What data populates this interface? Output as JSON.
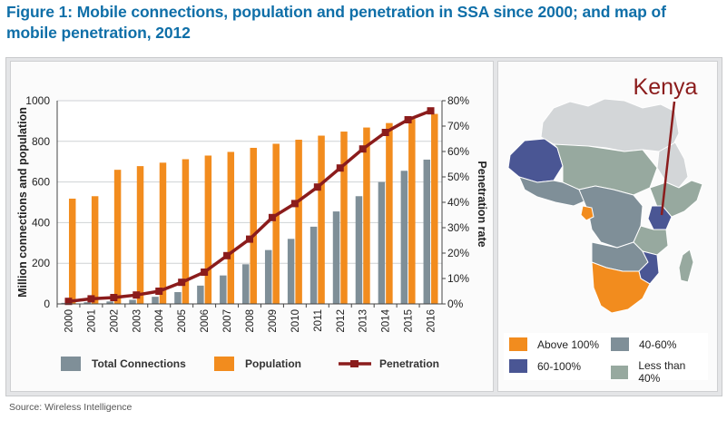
{
  "figure": {
    "title": "Figure 1: Mobile connections, population and penetration in SSA since 2000; and map of mobile penetration, 2012",
    "source": "Source: Wireless Intelligence"
  },
  "chart_data": {
    "type": "bar",
    "categories": [
      "2000",
      "2001",
      "2002",
      "2003",
      "2004",
      "2005",
      "2006",
      "2007",
      "2008",
      "2009",
      "2010",
      "2011",
      "2012",
      "2013",
      "2014",
      "2015",
      "2016"
    ],
    "series": [
      {
        "name": "Total Connections",
        "kind": "bar",
        "axis": "left",
        "color": "#7f8f98",
        "values": [
          5,
          8,
          12,
          20,
          35,
          58,
          90,
          140,
          195,
          265,
          320,
          380,
          455,
          530,
          600,
          655,
          710
        ]
      },
      {
        "name": "Population",
        "kind": "bar",
        "axis": "left",
        "color": "#f28c1e",
        "values": [
          518,
          530,
          660,
          678,
          695,
          712,
          730,
          748,
          768,
          788,
          808,
          828,
          848,
          868,
          890,
          910,
          935
        ]
      },
      {
        "name": "Penetration",
        "kind": "line",
        "axis": "right",
        "color": "#8b1c1c",
        "values": [
          1,
          2,
          2.5,
          3.5,
          5,
          8.5,
          12.5,
          19,
          25.5,
          34,
          39.5,
          46,
          53.5,
          61,
          67.5,
          72.5,
          76
        ]
      }
    ],
    "xlabel": "",
    "ylabel": "Million connections and population",
    "y2label": "Penetration rate",
    "ylim": [
      0,
      1000
    ],
    "y2lim": [
      0,
      80
    ],
    "yticks": [
      "0",
      "200",
      "400",
      "600",
      "800",
      "1000"
    ],
    "y2ticks": [
      "0%",
      "10%",
      "20%",
      "30%",
      "40%",
      "50%",
      "60%",
      "70%",
      "80%"
    ],
    "grid": true,
    "legend_position": "bottom"
  },
  "map": {
    "callout": "Kenya",
    "legend": [
      {
        "label": "Above 100%",
        "color": "#f28c1e"
      },
      {
        "label": "40-60%",
        "color": "#7f8f98"
      },
      {
        "label": "60-100%",
        "color": "#4a5694"
      },
      {
        "label": "Less than 40%",
        "color": "#97a99f"
      }
    ]
  }
}
